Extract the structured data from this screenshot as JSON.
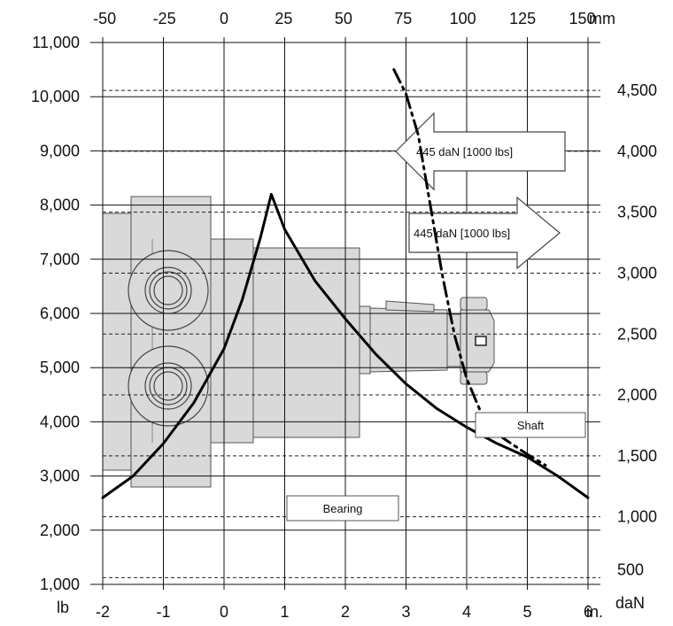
{
  "chart_data": {
    "type": "line",
    "title": "",
    "axes": {
      "bottom_inch": {
        "label": "in.",
        "min": -2,
        "max": 6,
        "ticks": [
          "-2",
          "-1",
          "0",
          "1",
          "2",
          "3",
          "4",
          "5",
          "6"
        ]
      },
      "top_mm": {
        "label": "mm",
        "ticks": [
          "-50",
          "-25",
          "0",
          "25",
          "50",
          "75",
          "100",
          "125",
          "150"
        ]
      },
      "left_lb": {
        "label": "lb",
        "min": 1000,
        "max": 11000,
        "ticks": [
          "1,000",
          "2,000",
          "3,000",
          "4,000",
          "5,000",
          "6,000",
          "7,000",
          "8,000",
          "9,000",
          "10,000",
          "11,000"
        ]
      },
      "right_dan": {
        "label": "daN",
        "ticks": [
          "500",
          "1,000",
          "1,500",
          "2,000",
          "2,500",
          "3,000",
          "3,500",
          "4,000",
          "4,500"
        ]
      }
    },
    "grid": true,
    "series": [
      {
        "name": "Bearing",
        "style": "solid",
        "x": [
          -2,
          -1.5,
          -1,
          -0.5,
          0,
          0.3,
          0.6,
          0.78,
          1,
          1.5,
          2,
          2.5,
          3,
          3.5,
          4,
          4.5,
          5,
          5.5,
          6
        ],
        "y": [
          2600,
          3000,
          3600,
          4350,
          5350,
          6250,
          7400,
          8200,
          7550,
          6600,
          5900,
          5250,
          4700,
          4250,
          3900,
          3600,
          3350,
          3000,
          2600
        ]
      },
      {
        "name": "Shaft",
        "style": "dash-dot",
        "x": [
          2.8,
          3,
          3.2,
          3.4,
          3.6,
          3.8,
          4,
          4.3,
          4.6,
          5,
          5.3
        ],
        "y": [
          10500,
          10050,
          9300,
          8000,
          6700,
          5600,
          4800,
          4000,
          3700,
          3400,
          3200
        ]
      }
    ],
    "annotations": [
      "445 daN [1000 lbs]",
      "445 daN [1000 lbs]"
    ],
    "colors": {
      "curve": "#000000",
      "motor_body": "#d9d9d9",
      "motor_outline": "#555555"
    }
  }
}
